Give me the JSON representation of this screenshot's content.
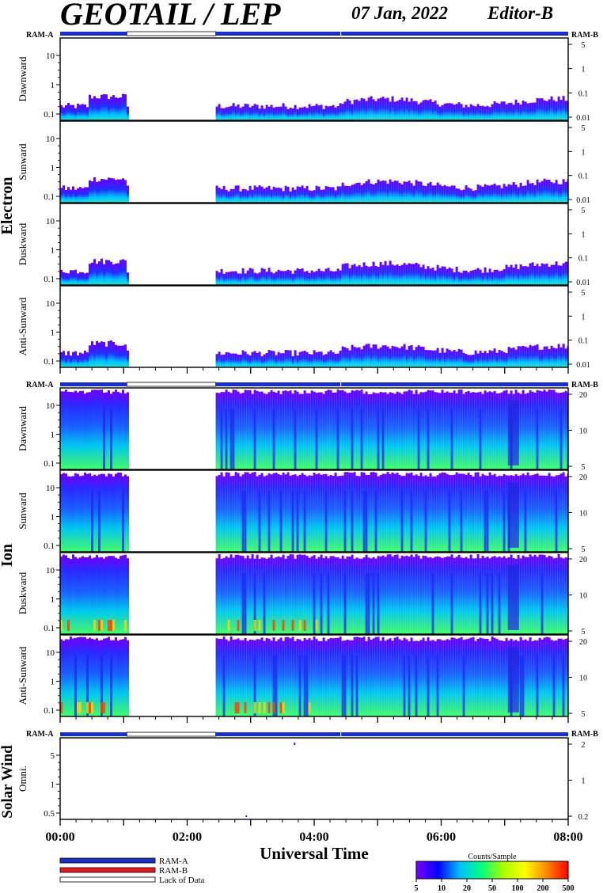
{
  "header": {
    "title": "GEOTAIL / LEP",
    "date": "07 Jan, 2022",
    "editor": "Editor-B"
  },
  "labels": {
    "ram_a": "RAM-A",
    "ram_b": "RAM-B"
  },
  "groups": [
    {
      "name": "Electron",
      "panels": [
        "Dawnward",
        "Sunward",
        "Duskward",
        "Anti-Sunward"
      ],
      "left_ticks": [
        "10",
        "1",
        "0.1"
      ],
      "right_ticks": [
        "5",
        "1",
        "0.1",
        "0.01"
      ]
    },
    {
      "name": "Ion",
      "panels": [
        "Dawnward",
        "Sunward",
        "Duskward",
        "Anti-Sunward"
      ],
      "left_ticks": [
        "10",
        "1",
        "0.1"
      ],
      "right_ticks": [
        "20",
        "10",
        "5"
      ]
    },
    {
      "name": "Solar Wind",
      "panels": [
        "Omni."
      ],
      "left_ticks": [
        "5",
        "1",
        "0.5"
      ],
      "right_ticks": [
        "2",
        "1",
        "0.2"
      ]
    }
  ],
  "chart_data": {
    "type": "heatmap",
    "xlabel": "Universal Time",
    "x_ticks": [
      "00:00",
      "02:00",
      "04:00",
      "06:00",
      "08:00"
    ],
    "x_range_hours": [
      0,
      8
    ],
    "data_gap_hours": [
      1.05,
      2.45
    ],
    "ram_segments": [
      {
        "start": 0.0,
        "end": 1.05,
        "mode": "RAM-A"
      },
      {
        "start": 1.05,
        "end": 2.45,
        "mode": "Lack of Data"
      },
      {
        "start": 2.45,
        "end": 8.0,
        "mode": "RAM-A"
      }
    ],
    "colorbar": {
      "title": "Counts/Sample",
      "ticks": [
        "5",
        "10",
        "20",
        "50",
        "100",
        "200",
        "500"
      ],
      "colors": [
        "#7b00ff",
        "#0000ff",
        "#00bfff",
        "#00ff7f",
        "#aaff00",
        "#ffff00",
        "#ff8800",
        "#ff0000"
      ]
    }
  },
  "legend": [
    {
      "label": "RAM-A",
      "color": "#1a2fc8"
    },
    {
      "label": "RAM-B",
      "color": "#e02020"
    },
    {
      "label": "Lack of Data",
      "color": "#ffffff"
    }
  ]
}
